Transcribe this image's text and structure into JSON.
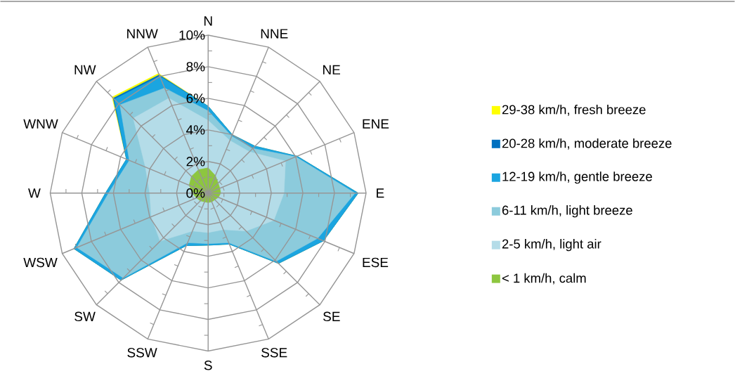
{
  "chart_data": {
    "type": "radar",
    "categories": [
      "N",
      "NNE",
      "NE",
      "ENE",
      "E",
      "ESE",
      "SE",
      "SSE",
      "S",
      "SSW",
      "SW",
      "WSW",
      "W",
      "WNW",
      "NW",
      "NNW"
    ],
    "series": [
      {
        "name": "29-38 km/h, fresh breeze",
        "color": "#ffff00",
        "values": [
          5.5,
          4.0,
          4.2,
          6.1,
          9.5,
          7.9,
          6.3,
          3.5,
          3.3,
          3.6,
          7.8,
          9.2,
          6.5,
          5.6,
          8.6,
          8.2
        ]
      },
      {
        "name": "20-28 km/h, moderate breeze",
        "color": "#0070c0",
        "values": [
          5.5,
          4.0,
          4.2,
          6.1,
          9.5,
          7.9,
          6.3,
          3.5,
          3.3,
          3.6,
          7.8,
          9.2,
          6.5,
          5.6,
          8.5,
          8.1
        ]
      },
      {
        "name": "12-19 km/h, gentle breeze",
        "color": "#1ba5e0",
        "values": [
          5.5,
          4.0,
          4.2,
          6.1,
          9.5,
          7.9,
          6.3,
          3.5,
          3.3,
          3.6,
          7.8,
          9.2,
          6.5,
          5.6,
          8.4,
          8.0
        ]
      },
      {
        "name": "6-11 km/h, light breeze",
        "color": "#8ccbdc",
        "values": [
          5.2,
          3.9,
          4.0,
          6.0,
          9.3,
          7.5,
          6.1,
          3.4,
          3.2,
          3.4,
          7.6,
          9.0,
          6.3,
          5.4,
          7.9,
          7.2
        ]
      },
      {
        "name": "2-5 km/h, light air",
        "color": "#b4dce8",
        "values": [
          4.6,
          3.6,
          3.7,
          5.3,
          4.8,
          4.5,
          3.4,
          2.5,
          2.5,
          2.6,
          4.3,
          3.9,
          3.7,
          4.3,
          6.7,
          6.5
        ]
      },
      {
        "name": "< 1 km/h, calm",
        "color": "#8dc63f",
        "values": [
          1.6,
          1.2,
          0.9,
          0.8,
          0.8,
          0.7,
          0.6,
          0.6,
          0.6,
          0.6,
          0.7,
          0.8,
          1.0,
          1.3,
          1.5,
          1.6
        ]
      }
    ],
    "ylim": [
      0,
      10
    ],
    "yticks": [
      {
        "value": 0,
        "label": "0%"
      },
      {
        "value": 2,
        "label": "2%"
      },
      {
        "value": 4,
        "label": "4%"
      },
      {
        "value": 6,
        "label": "6%"
      },
      {
        "value": 8,
        "label": "8%"
      },
      {
        "value": 10,
        "label": "10%"
      }
    ],
    "grid": true,
    "legend": "right",
    "marker": "none"
  }
}
